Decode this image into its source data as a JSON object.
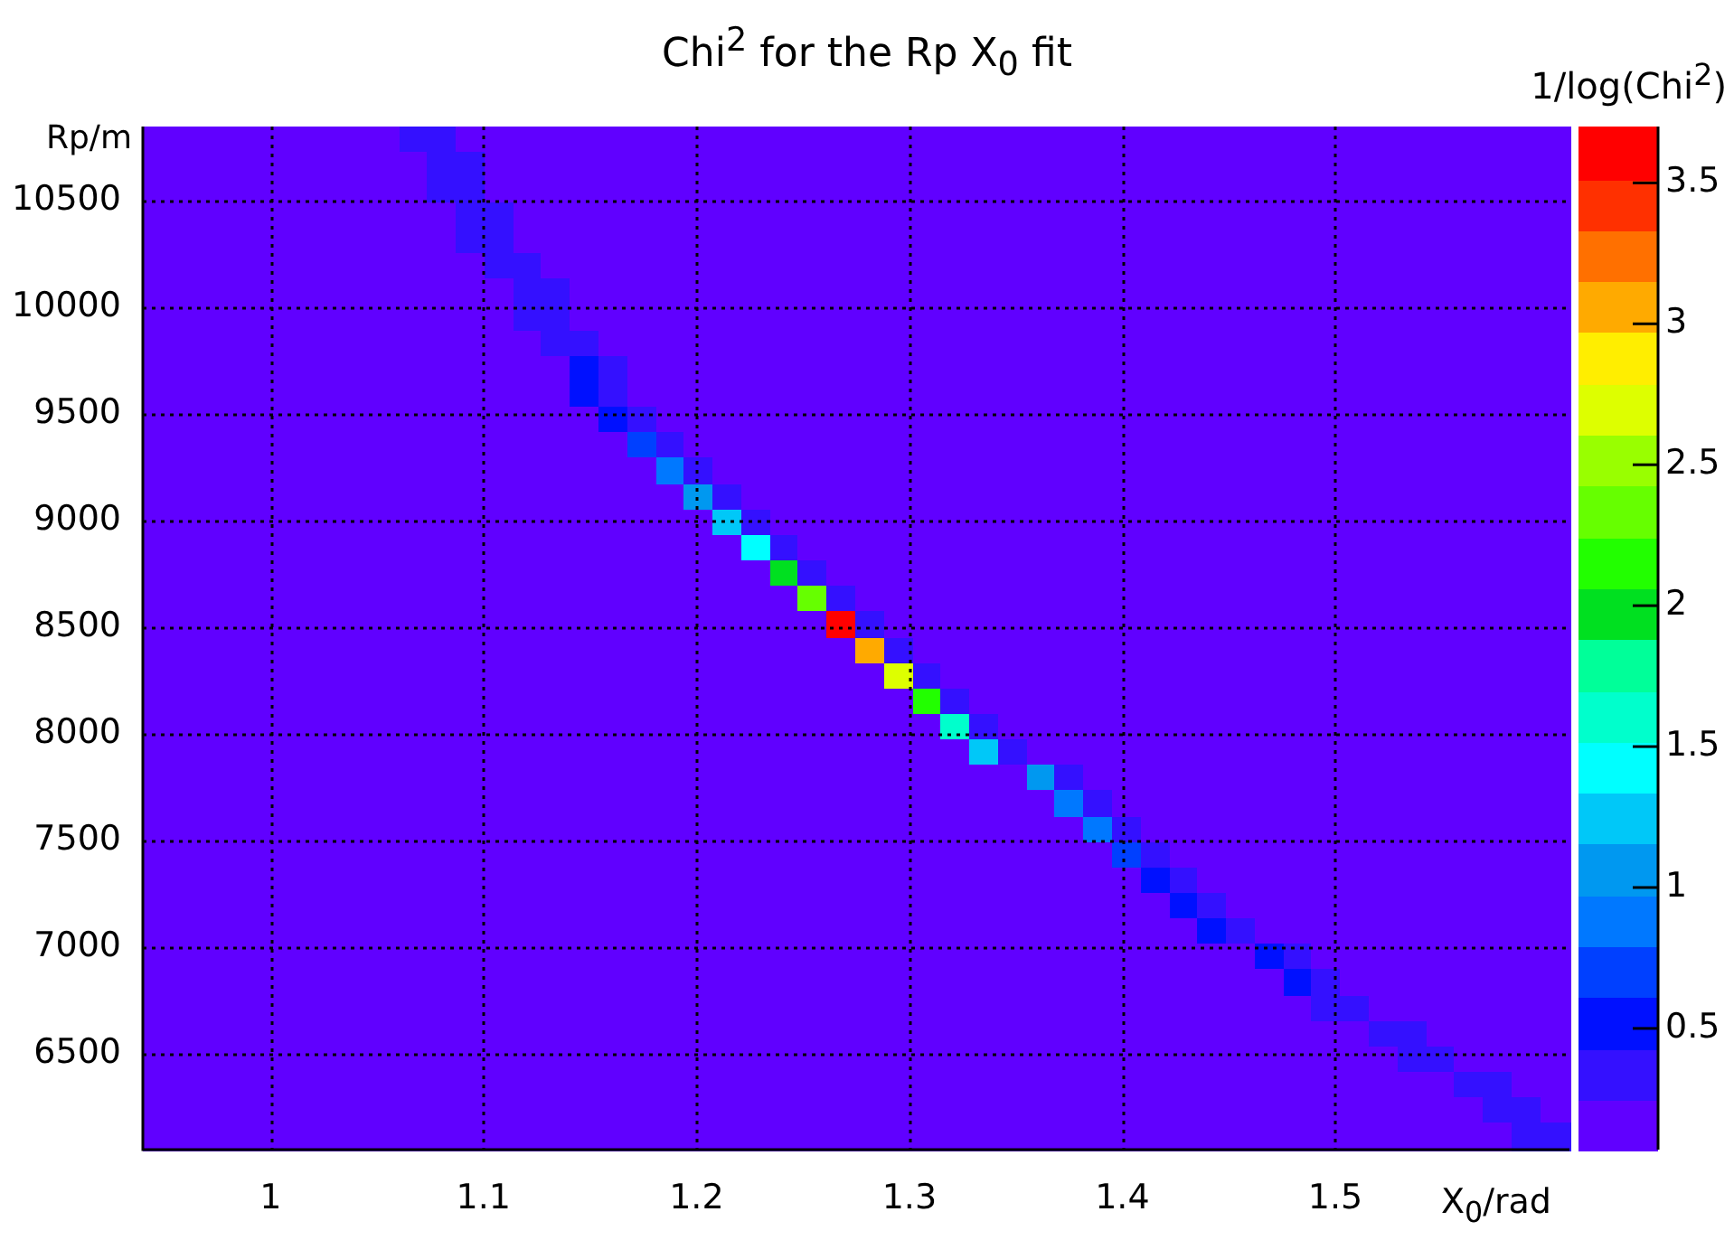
{
  "chart_data": {
    "type": "heatmap",
    "title": "Chi$^{2}$ for the Rp X$_{0}$ fit",
    "xlabel": "X$_{0}$/rad",
    "ylabel": "Rp/m",
    "clabel": "1/log(Chi$^{2}$)",
    "xlim": [
      0.94,
      1.61
    ],
    "ylim": [
      6050,
      10850
    ],
    "xticks": [
      1,
      1.1,
      1.2,
      1.3,
      1.4,
      1.5
    ],
    "yticks": [
      6500,
      7000,
      7500,
      8000,
      8500,
      9000,
      9500,
      10000,
      10500
    ],
    "clim": [
      0.07,
      3.7
    ],
    "cticks": [
      0.5,
      1,
      1.5,
      2,
      2.5,
      3,
      3.5
    ],
    "grid": true,
    "cells": [
      [
        0.1,
        0.1,
        0.1,
        0.1,
        0.1,
        0.1,
        0.1,
        0.1,
        0.1,
        0.35,
        0.3,
        0.1,
        0.1,
        0.1,
        0.1,
        0.1,
        0.1,
        0.1,
        0.1,
        0.1,
        0.1,
        0.1,
        0.1,
        0.1,
        0.1,
        0.1,
        0.1,
        0.1,
        0.1,
        0.1,
        0.1,
        0.1,
        0.1,
        0.1,
        0.1,
        0.1,
        0.1,
        0.1,
        0.1,
        0.1,
        0.1,
        0.1,
        0.1,
        0.1,
        0.1,
        0.1,
        0.1,
        0.1,
        0.1,
        0.1
      ],
      [
        0.1,
        0.1,
        0.1,
        0.1,
        0.1,
        0.1,
        0.1,
        0.1,
        0.1,
        0.1,
        0.35,
        0.3,
        0.1,
        0.1,
        0.1,
        0.1,
        0.1,
        0.1,
        0.1,
        0.1,
        0.1,
        0.1,
        0.1,
        0.1,
        0.1,
        0.1,
        0.1,
        0.1,
        0.1,
        0.1,
        0.1,
        0.1,
        0.1,
        0.1,
        0.1,
        0.1,
        0.1,
        0.1,
        0.1,
        0.1,
        0.1,
        0.1,
        0.1,
        0.1,
        0.1,
        0.1,
        0.1,
        0.1,
        0.1,
        0.1
      ],
      [
        0.1,
        0.1,
        0.1,
        0.1,
        0.1,
        0.1,
        0.1,
        0.1,
        0.1,
        0.1,
        0.35,
        0.3,
        0.1,
        0.1,
        0.1,
        0.1,
        0.1,
        0.1,
        0.1,
        0.1,
        0.1,
        0.1,
        0.1,
        0.1,
        0.1,
        0.1,
        0.1,
        0.1,
        0.1,
        0.1,
        0.1,
        0.1,
        0.1,
        0.1,
        0.1,
        0.1,
        0.1,
        0.1,
        0.1,
        0.1,
        0.1,
        0.1,
        0.1,
        0.1,
        0.1,
        0.1,
        0.1,
        0.1,
        0.1,
        0.1
      ],
      [
        0.1,
        0.1,
        0.1,
        0.1,
        0.1,
        0.1,
        0.1,
        0.1,
        0.1,
        0.1,
        0.1,
        0.35,
        0.3,
        0.1,
        0.1,
        0.1,
        0.1,
        0.1,
        0.1,
        0.1,
        0.1,
        0.1,
        0.1,
        0.1,
        0.1,
        0.1,
        0.1,
        0.1,
        0.1,
        0.1,
        0.1,
        0.1,
        0.1,
        0.1,
        0.1,
        0.1,
        0.1,
        0.1,
        0.1,
        0.1,
        0.1,
        0.1,
        0.1,
        0.1,
        0.1,
        0.1,
        0.1,
        0.1,
        0.1,
        0.1
      ],
      [
        0.1,
        0.1,
        0.1,
        0.1,
        0.1,
        0.1,
        0.1,
        0.1,
        0.1,
        0.1,
        0.1,
        0.35,
        0.3,
        0.1,
        0.1,
        0.1,
        0.1,
        0.1,
        0.1,
        0.1,
        0.1,
        0.1,
        0.1,
        0.1,
        0.1,
        0.1,
        0.1,
        0.1,
        0.1,
        0.1,
        0.1,
        0.1,
        0.1,
        0.1,
        0.1,
        0.1,
        0.1,
        0.1,
        0.1,
        0.1,
        0.1,
        0.1,
        0.1,
        0.1,
        0.1,
        0.1,
        0.1,
        0.1,
        0.1,
        0.1
      ],
      [
        0.1,
        0.1,
        0.1,
        0.1,
        0.1,
        0.1,
        0.1,
        0.1,
        0.1,
        0.1,
        0.1,
        0.1,
        0.35,
        0.3,
        0.1,
        0.1,
        0.1,
        0.1,
        0.1,
        0.1,
        0.1,
        0.1,
        0.1,
        0.1,
        0.1,
        0.1,
        0.1,
        0.1,
        0.1,
        0.1,
        0.1,
        0.1,
        0.1,
        0.1,
        0.1,
        0.1,
        0.1,
        0.1,
        0.1,
        0.1,
        0.1,
        0.1,
        0.1,
        0.1,
        0.1,
        0.1,
        0.1,
        0.1,
        0.1,
        0.1
      ],
      [
        0.1,
        0.1,
        0.1,
        0.1,
        0.1,
        0.1,
        0.1,
        0.1,
        0.1,
        0.1,
        0.1,
        0.1,
        0.1,
        0.35,
        0.3,
        0.1,
        0.1,
        0.1,
        0.1,
        0.1,
        0.1,
        0.1,
        0.1,
        0.1,
        0.1,
        0.1,
        0.1,
        0.1,
        0.1,
        0.1,
        0.1,
        0.1,
        0.1,
        0.1,
        0.1,
        0.1,
        0.1,
        0.1,
        0.1,
        0.1,
        0.1,
        0.1,
        0.1,
        0.1,
        0.1,
        0.1,
        0.1,
        0.1,
        0.1,
        0.1
      ],
      [
        0.1,
        0.1,
        0.1,
        0.1,
        0.1,
        0.1,
        0.1,
        0.1,
        0.1,
        0.1,
        0.1,
        0.1,
        0.1,
        0.35,
        0.3,
        0.1,
        0.1,
        0.1,
        0.1,
        0.1,
        0.1,
        0.1,
        0.1,
        0.1,
        0.1,
        0.1,
        0.1,
        0.1,
        0.1,
        0.1,
        0.1,
        0.1,
        0.1,
        0.1,
        0.1,
        0.1,
        0.1,
        0.1,
        0.1,
        0.1,
        0.1,
        0.1,
        0.1,
        0.1,
        0.1,
        0.1,
        0.1,
        0.1,
        0.1,
        0.1
      ],
      [
        0.1,
        0.1,
        0.1,
        0.1,
        0.1,
        0.1,
        0.1,
        0.1,
        0.1,
        0.1,
        0.1,
        0.1,
        0.1,
        0.1,
        0.4,
        0.3,
        0.1,
        0.1,
        0.1,
        0.1,
        0.1,
        0.1,
        0.1,
        0.1,
        0.1,
        0.1,
        0.1,
        0.1,
        0.1,
        0.1,
        0.1,
        0.1,
        0.1,
        0.1,
        0.1,
        0.1,
        0.1,
        0.1,
        0.1,
        0.1,
        0.1,
        0.1,
        0.1,
        0.1,
        0.1,
        0.1,
        0.1,
        0.1,
        0.1,
        0.1
      ],
      [
        0.1,
        0.1,
        0.1,
        0.1,
        0.1,
        0.1,
        0.1,
        0.1,
        0.1,
        0.1,
        0.1,
        0.1,
        0.1,
        0.1,
        0.1,
        0.5,
        0.3,
        0.1,
        0.1,
        0.1,
        0.1,
        0.1,
        0.1,
        0.1,
        0.1,
        0.1,
        0.1,
        0.1,
        0.1,
        0.1,
        0.1,
        0.1,
        0.1,
        0.1,
        0.1,
        0.1,
        0.1,
        0.1,
        0.1,
        0.1,
        0.1,
        0.1,
        0.1,
        0.1,
        0.1,
        0.1,
        0.1,
        0.1,
        0.1,
        0.1
      ],
      [
        0.1,
        0.1,
        0.1,
        0.1,
        0.1,
        0.1,
        0.1,
        0.1,
        0.1,
        0.1,
        0.1,
        0.1,
        0.1,
        0.1,
        0.1,
        0.5,
        0.3,
        0.1,
        0.1,
        0.1,
        0.1,
        0.1,
        0.1,
        0.1,
        0.1,
        0.1,
        0.1,
        0.1,
        0.1,
        0.1,
        0.1,
        0.1,
        0.1,
        0.1,
        0.1,
        0.1,
        0.1,
        0.1,
        0.1,
        0.1,
        0.1,
        0.1,
        0.1,
        0.1,
        0.1,
        0.1,
        0.1,
        0.1,
        0.1,
        0.1
      ],
      [
        0.1,
        0.1,
        0.1,
        0.1,
        0.1,
        0.1,
        0.1,
        0.1,
        0.1,
        0.1,
        0.1,
        0.1,
        0.1,
        0.1,
        0.1,
        0.1,
        0.6,
        0.3,
        0.1,
        0.1,
        0.1,
        0.1,
        0.1,
        0.1,
        0.1,
        0.1,
        0.1,
        0.1,
        0.1,
        0.1,
        0.1,
        0.1,
        0.1,
        0.1,
        0.1,
        0.1,
        0.1,
        0.1,
        0.1,
        0.1,
        0.1,
        0.1,
        0.1,
        0.1,
        0.1,
        0.1,
        0.1,
        0.1,
        0.1,
        0.1
      ],
      [
        0.1,
        0.1,
        0.1,
        0.1,
        0.1,
        0.1,
        0.1,
        0.1,
        0.1,
        0.1,
        0.1,
        0.1,
        0.1,
        0.1,
        0.1,
        0.1,
        0.1,
        0.7,
        0.3,
        0.1,
        0.1,
        0.1,
        0.1,
        0.1,
        0.1,
        0.1,
        0.1,
        0.1,
        0.1,
        0.1,
        0.1,
        0.1,
        0.1,
        0.1,
        0.1,
        0.1,
        0.1,
        0.1,
        0.1,
        0.1,
        0.1,
        0.1,
        0.1,
        0.1,
        0.1,
        0.1,
        0.1,
        0.1,
        0.1,
        0.1
      ],
      [
        0.1,
        0.1,
        0.1,
        0.1,
        0.1,
        0.1,
        0.1,
        0.1,
        0.1,
        0.1,
        0.1,
        0.1,
        0.1,
        0.1,
        0.1,
        0.1,
        0.1,
        0.1,
        0.9,
        0.3,
        0.1,
        0.1,
        0.1,
        0.1,
        0.1,
        0.1,
        0.1,
        0.1,
        0.1,
        0.1,
        0.1,
        0.1,
        0.1,
        0.1,
        0.1,
        0.1,
        0.1,
        0.1,
        0.1,
        0.1,
        0.1,
        0.1,
        0.1,
        0.1,
        0.1,
        0.1,
        0.1,
        0.1,
        0.1,
        0.1
      ],
      [
        0.1,
        0.1,
        0.1,
        0.1,
        0.1,
        0.1,
        0.1,
        0.1,
        0.1,
        0.1,
        0.1,
        0.1,
        0.1,
        0.1,
        0.1,
        0.1,
        0.1,
        0.1,
        0.1,
        1.0,
        0.3,
        0.1,
        0.1,
        0.1,
        0.1,
        0.1,
        0.1,
        0.1,
        0.1,
        0.1,
        0.1,
        0.1,
        0.1,
        0.1,
        0.1,
        0.1,
        0.1,
        0.1,
        0.1,
        0.1,
        0.1,
        0.1,
        0.1,
        0.1,
        0.1,
        0.1,
        0.1,
        0.1,
        0.1,
        0.1
      ],
      [
        0.1,
        0.1,
        0.1,
        0.1,
        0.1,
        0.1,
        0.1,
        0.1,
        0.1,
        0.1,
        0.1,
        0.1,
        0.1,
        0.1,
        0.1,
        0.1,
        0.1,
        0.1,
        0.1,
        0.1,
        1.2,
        0.3,
        0.1,
        0.1,
        0.1,
        0.1,
        0.1,
        0.1,
        0.1,
        0.1,
        0.1,
        0.1,
        0.1,
        0.1,
        0.1,
        0.1,
        0.1,
        0.1,
        0.1,
        0.1,
        0.1,
        0.1,
        0.1,
        0.1,
        0.1,
        0.1,
        0.1,
        0.1,
        0.1,
        0.1
      ],
      [
        0.1,
        0.1,
        0.1,
        0.1,
        0.1,
        0.1,
        0.1,
        0.1,
        0.1,
        0.1,
        0.1,
        0.1,
        0.1,
        0.1,
        0.1,
        0.1,
        0.1,
        0.1,
        0.1,
        0.1,
        0.1,
        1.5,
        0.3,
        0.1,
        0.1,
        0.1,
        0.1,
        0.1,
        0.1,
        0.1,
        0.1,
        0.1,
        0.1,
        0.1,
        0.1,
        0.1,
        0.1,
        0.1,
        0.1,
        0.1,
        0.1,
        0.1,
        0.1,
        0.1,
        0.1,
        0.1,
        0.1,
        0.1,
        0.1,
        0.1
      ],
      [
        0.1,
        0.1,
        0.1,
        0.1,
        0.1,
        0.1,
        0.1,
        0.1,
        0.1,
        0.1,
        0.1,
        0.1,
        0.1,
        0.1,
        0.1,
        0.1,
        0.1,
        0.1,
        0.1,
        0.1,
        0.1,
        0.1,
        2.0,
        0.3,
        0.1,
        0.1,
        0.1,
        0.1,
        0.1,
        0.1,
        0.1,
        0.1,
        0.1,
        0.1,
        0.1,
        0.1,
        0.1,
        0.1,
        0.1,
        0.1,
        0.1,
        0.1,
        0.1,
        0.1,
        0.1,
        0.1,
        0.1,
        0.1,
        0.1,
        0.1
      ],
      [
        0.1,
        0.1,
        0.1,
        0.1,
        0.1,
        0.1,
        0.1,
        0.1,
        0.1,
        0.1,
        0.1,
        0.1,
        0.1,
        0.1,
        0.1,
        0.1,
        0.1,
        0.1,
        0.1,
        0.1,
        0.1,
        0.1,
        0.1,
        2.4,
        0.3,
        0.1,
        0.1,
        0.1,
        0.1,
        0.1,
        0.1,
        0.1,
        0.1,
        0.1,
        0.1,
        0.1,
        0.1,
        0.1,
        0.1,
        0.1,
        0.1,
        0.1,
        0.1,
        0.1,
        0.1,
        0.1,
        0.1,
        0.1,
        0.1,
        0.1
      ],
      [
        0.1,
        0.1,
        0.1,
        0.1,
        0.1,
        0.1,
        0.1,
        0.1,
        0.1,
        0.1,
        0.1,
        0.1,
        0.1,
        0.1,
        0.1,
        0.1,
        0.1,
        0.1,
        0.1,
        0.1,
        0.1,
        0.1,
        0.1,
        0.1,
        3.6,
        0.3,
        0.1,
        0.1,
        0.1,
        0.1,
        0.1,
        0.1,
        0.1,
        0.1,
        0.1,
        0.1,
        0.1,
        0.1,
        0.1,
        0.1,
        0.1,
        0.1,
        0.1,
        0.1,
        0.1,
        0.1,
        0.1,
        0.1,
        0.1,
        0.1
      ],
      [
        0.1,
        0.1,
        0.1,
        0.1,
        0.1,
        0.1,
        0.1,
        0.1,
        0.1,
        0.1,
        0.1,
        0.1,
        0.1,
        0.1,
        0.1,
        0.1,
        0.1,
        0.1,
        0.1,
        0.1,
        0.1,
        0.1,
        0.1,
        0.1,
        0.1,
        3.0,
        0.3,
        0.1,
        0.1,
        0.1,
        0.1,
        0.1,
        0.1,
        0.1,
        0.1,
        0.1,
        0.1,
        0.1,
        0.1,
        0.1,
        0.1,
        0.1,
        0.1,
        0.1,
        0.1,
        0.1,
        0.1,
        0.1,
        0.1,
        0.1
      ],
      [
        0.1,
        0.1,
        0.1,
        0.1,
        0.1,
        0.1,
        0.1,
        0.1,
        0.1,
        0.1,
        0.1,
        0.1,
        0.1,
        0.1,
        0.1,
        0.1,
        0.1,
        0.1,
        0.1,
        0.1,
        0.1,
        0.1,
        0.1,
        0.1,
        0.1,
        0.1,
        2.7,
        0.3,
        0.1,
        0.1,
        0.1,
        0.1,
        0.1,
        0.1,
        0.1,
        0.1,
        0.1,
        0.1,
        0.1,
        0.1,
        0.1,
        0.1,
        0.1,
        0.1,
        0.1,
        0.1,
        0.1,
        0.1,
        0.1,
        0.1
      ],
      [
        0.1,
        0.1,
        0.1,
        0.1,
        0.1,
        0.1,
        0.1,
        0.1,
        0.1,
        0.1,
        0.1,
        0.1,
        0.1,
        0.1,
        0.1,
        0.1,
        0.1,
        0.1,
        0.1,
        0.1,
        0.1,
        0.1,
        0.1,
        0.1,
        0.1,
        0.1,
        0.1,
        2.2,
        0.3,
        0.1,
        0.1,
        0.1,
        0.1,
        0.1,
        0.1,
        0.1,
        0.1,
        0.1,
        0.1,
        0.1,
        0.1,
        0.1,
        0.1,
        0.1,
        0.1,
        0.1,
        0.1,
        0.1,
        0.1,
        0.1
      ],
      [
        0.1,
        0.1,
        0.1,
        0.1,
        0.1,
        0.1,
        0.1,
        0.1,
        0.1,
        0.1,
        0.1,
        0.1,
        0.1,
        0.1,
        0.1,
        0.1,
        0.1,
        0.1,
        0.1,
        0.1,
        0.1,
        0.1,
        0.1,
        0.1,
        0.1,
        0.1,
        0.1,
        0.1,
        1.7,
        0.3,
        0.1,
        0.1,
        0.1,
        0.1,
        0.1,
        0.1,
        0.1,
        0.1,
        0.1,
        0.1,
        0.1,
        0.1,
        0.1,
        0.1,
        0.1,
        0.1,
        0.1,
        0.1,
        0.1,
        0.1
      ],
      [
        0.1,
        0.1,
        0.1,
        0.1,
        0.1,
        0.1,
        0.1,
        0.1,
        0.1,
        0.1,
        0.1,
        0.1,
        0.1,
        0.1,
        0.1,
        0.1,
        0.1,
        0.1,
        0.1,
        0.1,
        0.1,
        0.1,
        0.1,
        0.1,
        0.1,
        0.1,
        0.1,
        0.1,
        0.1,
        1.3,
        0.3,
        0.1,
        0.1,
        0.1,
        0.1,
        0.1,
        0.1,
        0.1,
        0.1,
        0.1,
        0.1,
        0.1,
        0.1,
        0.1,
        0.1,
        0.1,
        0.1,
        0.1,
        0.1,
        0.1
      ],
      [
        0.1,
        0.1,
        0.1,
        0.1,
        0.1,
        0.1,
        0.1,
        0.1,
        0.1,
        0.1,
        0.1,
        0.1,
        0.1,
        0.1,
        0.1,
        0.1,
        0.1,
        0.1,
        0.1,
        0.1,
        0.1,
        0.1,
        0.1,
        0.1,
        0.1,
        0.1,
        0.1,
        0.1,
        0.1,
        0.1,
        0.1,
        1.0,
        0.3,
        0.1,
        0.1,
        0.1,
        0.1,
        0.1,
        0.1,
        0.1,
        0.1,
        0.1,
        0.1,
        0.1,
        0.1,
        0.1,
        0.1,
        0.1,
        0.1,
        0.1
      ],
      [
        0.1,
        0.1,
        0.1,
        0.1,
        0.1,
        0.1,
        0.1,
        0.1,
        0.1,
        0.1,
        0.1,
        0.1,
        0.1,
        0.1,
        0.1,
        0.1,
        0.1,
        0.1,
        0.1,
        0.1,
        0.1,
        0.1,
        0.1,
        0.1,
        0.1,
        0.1,
        0.1,
        0.1,
        0.1,
        0.1,
        0.1,
        0.1,
        0.9,
        0.3,
        0.1,
        0.1,
        0.1,
        0.1,
        0.1,
        0.1,
        0.1,
        0.1,
        0.1,
        0.1,
        0.1,
        0.1,
        0.1,
        0.1,
        0.1,
        0.1
      ],
      [
        0.1,
        0.1,
        0.1,
        0.1,
        0.1,
        0.1,
        0.1,
        0.1,
        0.1,
        0.1,
        0.1,
        0.1,
        0.1,
        0.1,
        0.1,
        0.1,
        0.1,
        0.1,
        0.1,
        0.1,
        0.1,
        0.1,
        0.1,
        0.1,
        0.1,
        0.1,
        0.1,
        0.1,
        0.1,
        0.1,
        0.1,
        0.1,
        0.1,
        0.8,
        0.3,
        0.1,
        0.1,
        0.1,
        0.1,
        0.1,
        0.1,
        0.1,
        0.1,
        0.1,
        0.1,
        0.1,
        0.1,
        0.1,
        0.1,
        0.1
      ],
      [
        0.1,
        0.1,
        0.1,
        0.1,
        0.1,
        0.1,
        0.1,
        0.1,
        0.1,
        0.1,
        0.1,
        0.1,
        0.1,
        0.1,
        0.1,
        0.1,
        0.1,
        0.1,
        0.1,
        0.1,
        0.1,
        0.1,
        0.1,
        0.1,
        0.1,
        0.1,
        0.1,
        0.1,
        0.1,
        0.1,
        0.1,
        0.1,
        0.1,
        0.1,
        0.7,
        0.3,
        0.1,
        0.1,
        0.1,
        0.1,
        0.1,
        0.1,
        0.1,
        0.1,
        0.1,
        0.1,
        0.1,
        0.1,
        0.1,
        0.1
      ],
      [
        0.1,
        0.1,
        0.1,
        0.1,
        0.1,
        0.1,
        0.1,
        0.1,
        0.1,
        0.1,
        0.1,
        0.1,
        0.1,
        0.1,
        0.1,
        0.1,
        0.1,
        0.1,
        0.1,
        0.1,
        0.1,
        0.1,
        0.1,
        0.1,
        0.1,
        0.1,
        0.1,
        0.1,
        0.1,
        0.1,
        0.1,
        0.1,
        0.1,
        0.1,
        0.1,
        0.6,
        0.3,
        0.1,
        0.1,
        0.1,
        0.1,
        0.1,
        0.1,
        0.1,
        0.1,
        0.1,
        0.1,
        0.1,
        0.1,
        0.1
      ],
      [
        0.1,
        0.1,
        0.1,
        0.1,
        0.1,
        0.1,
        0.1,
        0.1,
        0.1,
        0.1,
        0.1,
        0.1,
        0.1,
        0.1,
        0.1,
        0.1,
        0.1,
        0.1,
        0.1,
        0.1,
        0.1,
        0.1,
        0.1,
        0.1,
        0.1,
        0.1,
        0.1,
        0.1,
        0.1,
        0.1,
        0.1,
        0.1,
        0.1,
        0.1,
        0.1,
        0.1,
        0.6,
        0.3,
        0.1,
        0.1,
        0.1,
        0.1,
        0.1,
        0.1,
        0.1,
        0.1,
        0.1,
        0.1,
        0.1,
        0.1
      ],
      [
        0.1,
        0.1,
        0.1,
        0.1,
        0.1,
        0.1,
        0.1,
        0.1,
        0.1,
        0.1,
        0.1,
        0.1,
        0.1,
        0.1,
        0.1,
        0.1,
        0.1,
        0.1,
        0.1,
        0.1,
        0.1,
        0.1,
        0.1,
        0.1,
        0.1,
        0.1,
        0.1,
        0.1,
        0.1,
        0.1,
        0.1,
        0.1,
        0.1,
        0.1,
        0.1,
        0.1,
        0.1,
        0.5,
        0.3,
        0.1,
        0.1,
        0.1,
        0.1,
        0.1,
        0.1,
        0.1,
        0.1,
        0.1,
        0.1,
        0.1
      ],
      [
        0.1,
        0.1,
        0.1,
        0.1,
        0.1,
        0.1,
        0.1,
        0.1,
        0.1,
        0.1,
        0.1,
        0.1,
        0.1,
        0.1,
        0.1,
        0.1,
        0.1,
        0.1,
        0.1,
        0.1,
        0.1,
        0.1,
        0.1,
        0.1,
        0.1,
        0.1,
        0.1,
        0.1,
        0.1,
        0.1,
        0.1,
        0.1,
        0.1,
        0.1,
        0.1,
        0.1,
        0.1,
        0.1,
        0.1,
        0.5,
        0.3,
        0.1,
        0.1,
        0.1,
        0.1,
        0.1,
        0.1,
        0.1,
        0.1,
        0.1
      ],
      [
        0.1,
        0.1,
        0.1,
        0.1,
        0.1,
        0.1,
        0.1,
        0.1,
        0.1,
        0.1,
        0.1,
        0.1,
        0.1,
        0.1,
        0.1,
        0.1,
        0.1,
        0.1,
        0.1,
        0.1,
        0.1,
        0.1,
        0.1,
        0.1,
        0.1,
        0.1,
        0.1,
        0.1,
        0.1,
        0.1,
        0.1,
        0.1,
        0.1,
        0.1,
        0.1,
        0.1,
        0.1,
        0.1,
        0.1,
        0.1,
        0.45,
        0.3,
        0.1,
        0.1,
        0.1,
        0.1,
        0.1,
        0.1,
        0.1,
        0.1
      ],
      [
        0.1,
        0.1,
        0.1,
        0.1,
        0.1,
        0.1,
        0.1,
        0.1,
        0.1,
        0.1,
        0.1,
        0.1,
        0.1,
        0.1,
        0.1,
        0.1,
        0.1,
        0.1,
        0.1,
        0.1,
        0.1,
        0.1,
        0.1,
        0.1,
        0.1,
        0.1,
        0.1,
        0.1,
        0.1,
        0.1,
        0.1,
        0.1,
        0.1,
        0.1,
        0.1,
        0.1,
        0.1,
        0.1,
        0.1,
        0.1,
        0.1,
        0.4,
        0.3,
        0.1,
        0.1,
        0.1,
        0.1,
        0.1,
        0.1,
        0.1
      ],
      [
        0.1,
        0.1,
        0.1,
        0.1,
        0.1,
        0.1,
        0.1,
        0.1,
        0.1,
        0.1,
        0.1,
        0.1,
        0.1,
        0.1,
        0.1,
        0.1,
        0.1,
        0.1,
        0.1,
        0.1,
        0.1,
        0.1,
        0.1,
        0.1,
        0.1,
        0.1,
        0.1,
        0.1,
        0.1,
        0.1,
        0.1,
        0.1,
        0.1,
        0.1,
        0.1,
        0.1,
        0.1,
        0.1,
        0.1,
        0.1,
        0.1,
        0.1,
        0.1,
        0.35,
        0.3,
        0.1,
        0.1,
        0.1,
        0.1,
        0.1
      ],
      [
        0.1,
        0.1,
        0.1,
        0.1,
        0.1,
        0.1,
        0.1,
        0.1,
        0.1,
        0.1,
        0.1,
        0.1,
        0.1,
        0.1,
        0.1,
        0.1,
        0.1,
        0.1,
        0.1,
        0.1,
        0.1,
        0.1,
        0.1,
        0.1,
        0.1,
        0.1,
        0.1,
        0.1,
        0.1,
        0.1,
        0.1,
        0.1,
        0.1,
        0.1,
        0.1,
        0.1,
        0.1,
        0.1,
        0.1,
        0.1,
        0.1,
        0.1,
        0.1,
        0.1,
        0.35,
        0.3,
        0.1,
        0.1,
        0.1,
        0.1
      ],
      [
        0.1,
        0.1,
        0.1,
        0.1,
        0.1,
        0.1,
        0.1,
        0.1,
        0.1,
        0.1,
        0.1,
        0.1,
        0.1,
        0.1,
        0.1,
        0.1,
        0.1,
        0.1,
        0.1,
        0.1,
        0.1,
        0.1,
        0.1,
        0.1,
        0.1,
        0.1,
        0.1,
        0.1,
        0.1,
        0.1,
        0.1,
        0.1,
        0.1,
        0.1,
        0.1,
        0.1,
        0.1,
        0.1,
        0.1,
        0.1,
        0.1,
        0.1,
        0.1,
        0.1,
        0.1,
        0.1,
        0.35,
        0.3,
        0.1,
        0.1
      ],
      [
        0.1,
        0.1,
        0.1,
        0.1,
        0.1,
        0.1,
        0.1,
        0.1,
        0.1,
        0.1,
        0.1,
        0.1,
        0.1,
        0.1,
        0.1,
        0.1,
        0.1,
        0.1,
        0.1,
        0.1,
        0.1,
        0.1,
        0.1,
        0.1,
        0.1,
        0.1,
        0.1,
        0.1,
        0.1,
        0.1,
        0.1,
        0.1,
        0.1,
        0.1,
        0.1,
        0.1,
        0.1,
        0.1,
        0.1,
        0.1,
        0.1,
        0.1,
        0.1,
        0.1,
        0.1,
        0.1,
        0.1,
        0.35,
        0.3,
        0.1
      ],
      [
        0.1,
        0.1,
        0.1,
        0.1,
        0.1,
        0.1,
        0.1,
        0.1,
        0.1,
        0.1,
        0.1,
        0.1,
        0.1,
        0.1,
        0.1,
        0.1,
        0.1,
        0.1,
        0.1,
        0.1,
        0.1,
        0.1,
        0.1,
        0.1,
        0.1,
        0.1,
        0.1,
        0.1,
        0.1,
        0.1,
        0.1,
        0.1,
        0.1,
        0.1,
        0.1,
        0.1,
        0.1,
        0.1,
        0.1,
        0.1,
        0.1,
        0.1,
        0.1,
        0.1,
        0.1,
        0.1,
        0.1,
        0.1,
        0.3,
        0.35
      ]
    ]
  }
}
